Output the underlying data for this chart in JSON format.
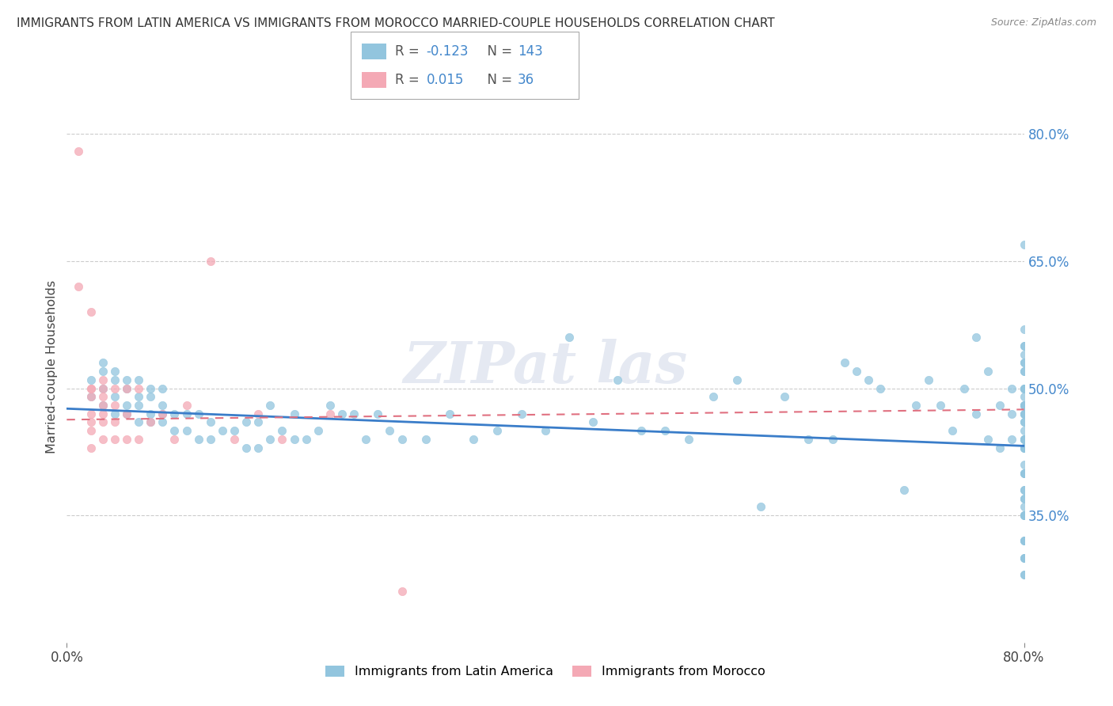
{
  "title": "IMMIGRANTS FROM LATIN AMERICA VS IMMIGRANTS FROM MOROCCO MARRIED-COUPLE HOUSEHOLDS CORRELATION CHART",
  "source": "Source: ZipAtlas.com",
  "ylabel": "Married-couple Households",
  "xlim": [
    0.0,
    0.8
  ],
  "ylim": [
    0.2,
    0.85
  ],
  "y_tick_values_right": [
    0.35,
    0.5,
    0.65,
    0.8
  ],
  "y_tick_labels_right": [
    "35.0%",
    "50.0%",
    "65.0%",
    "80.0%"
  ],
  "legend_R1": "-0.123",
  "legend_N1": "143",
  "legend_R2": "0.015",
  "legend_N2": "36",
  "blue_color": "#92c5de",
  "pink_color": "#f4a9b5",
  "blue_line_color": "#3a7dc9",
  "pink_line_color": "#e07080",
  "blue_scatter_x": [
    0.02,
    0.02,
    0.03,
    0.03,
    0.03,
    0.03,
    0.04,
    0.04,
    0.04,
    0.04,
    0.05,
    0.05,
    0.05,
    0.05,
    0.06,
    0.06,
    0.06,
    0.06,
    0.07,
    0.07,
    0.07,
    0.07,
    0.08,
    0.08,
    0.08,
    0.08,
    0.09,
    0.09,
    0.1,
    0.1,
    0.11,
    0.11,
    0.12,
    0.12,
    0.13,
    0.14,
    0.15,
    0.15,
    0.16,
    0.16,
    0.17,
    0.17,
    0.18,
    0.19,
    0.19,
    0.2,
    0.21,
    0.22,
    0.23,
    0.24,
    0.25,
    0.26,
    0.27,
    0.28,
    0.3,
    0.32,
    0.34,
    0.36,
    0.38,
    0.4,
    0.42,
    0.44,
    0.46,
    0.48,
    0.5,
    0.52,
    0.54,
    0.56,
    0.58,
    0.6,
    0.62,
    0.64,
    0.65,
    0.66,
    0.67,
    0.68,
    0.7,
    0.71,
    0.72,
    0.73,
    0.74,
    0.75,
    0.76,
    0.76,
    0.77,
    0.77,
    0.78,
    0.78,
    0.79,
    0.79,
    0.79,
    0.8,
    0.8,
    0.8,
    0.8,
    0.8,
    0.8,
    0.8,
    0.8,
    0.8,
    0.8,
    0.8,
    0.8,
    0.8,
    0.8,
    0.8,
    0.8,
    0.8,
    0.8,
    0.8,
    0.8,
    0.8,
    0.8,
    0.8,
    0.8,
    0.8,
    0.8,
    0.8,
    0.8,
    0.8,
    0.8,
    0.8,
    0.8,
    0.8,
    0.8,
    0.8,
    0.8,
    0.8,
    0.8,
    0.8,
    0.8,
    0.8,
    0.8,
    0.8,
    0.8,
    0.8,
    0.8,
    0.8,
    0.8,
    0.8,
    0.8,
    0.8,
    0.8,
    0.8
  ],
  "blue_scatter_y": [
    0.49,
    0.51,
    0.48,
    0.5,
    0.52,
    0.53,
    0.47,
    0.49,
    0.51,
    0.52,
    0.47,
    0.48,
    0.5,
    0.51,
    0.46,
    0.48,
    0.49,
    0.51,
    0.46,
    0.47,
    0.49,
    0.5,
    0.46,
    0.47,
    0.48,
    0.5,
    0.45,
    0.47,
    0.45,
    0.47,
    0.44,
    0.47,
    0.44,
    0.46,
    0.45,
    0.45,
    0.43,
    0.46,
    0.43,
    0.46,
    0.44,
    0.48,
    0.45,
    0.44,
    0.47,
    0.44,
    0.45,
    0.48,
    0.47,
    0.47,
    0.44,
    0.47,
    0.45,
    0.44,
    0.44,
    0.47,
    0.44,
    0.45,
    0.47,
    0.45,
    0.56,
    0.46,
    0.51,
    0.45,
    0.45,
    0.44,
    0.49,
    0.51,
    0.36,
    0.49,
    0.44,
    0.44,
    0.53,
    0.52,
    0.51,
    0.5,
    0.38,
    0.48,
    0.51,
    0.48,
    0.45,
    0.5,
    0.47,
    0.56,
    0.44,
    0.52,
    0.48,
    0.43,
    0.44,
    0.47,
    0.5,
    0.67,
    0.53,
    0.48,
    0.46,
    0.44,
    0.43,
    0.55,
    0.52,
    0.5,
    0.48,
    0.46,
    0.44,
    0.43,
    0.4,
    0.38,
    0.36,
    0.35,
    0.44,
    0.48,
    0.5,
    0.52,
    0.54,
    0.47,
    0.43,
    0.4,
    0.37,
    0.35,
    0.32,
    0.3,
    0.28,
    0.55,
    0.57,
    0.5,
    0.47,
    0.44,
    0.41,
    0.38,
    0.35,
    0.32,
    0.3,
    0.49,
    0.47,
    0.45,
    0.43,
    0.4,
    0.37,
    0.35,
    0.32,
    0.3,
    0.28,
    0.53,
    0.5,
    0.48
  ],
  "pink_scatter_x": [
    0.01,
    0.01,
    0.02,
    0.02,
    0.02,
    0.02,
    0.02,
    0.02,
    0.02,
    0.02,
    0.03,
    0.03,
    0.03,
    0.03,
    0.03,
    0.03,
    0.03,
    0.04,
    0.04,
    0.04,
    0.04,
    0.05,
    0.05,
    0.05,
    0.06,
    0.06,
    0.07,
    0.08,
    0.09,
    0.1,
    0.12,
    0.14,
    0.16,
    0.18,
    0.22,
    0.28
  ],
  "pink_scatter_y": [
    0.78,
    0.62,
    0.5,
    0.59,
    0.47,
    0.5,
    0.46,
    0.45,
    0.43,
    0.49,
    0.5,
    0.48,
    0.47,
    0.44,
    0.46,
    0.49,
    0.51,
    0.48,
    0.46,
    0.44,
    0.5,
    0.5,
    0.47,
    0.44,
    0.5,
    0.44,
    0.46,
    0.47,
    0.44,
    0.48,
    0.65,
    0.44,
    0.47,
    0.44,
    0.47,
    0.26
  ]
}
